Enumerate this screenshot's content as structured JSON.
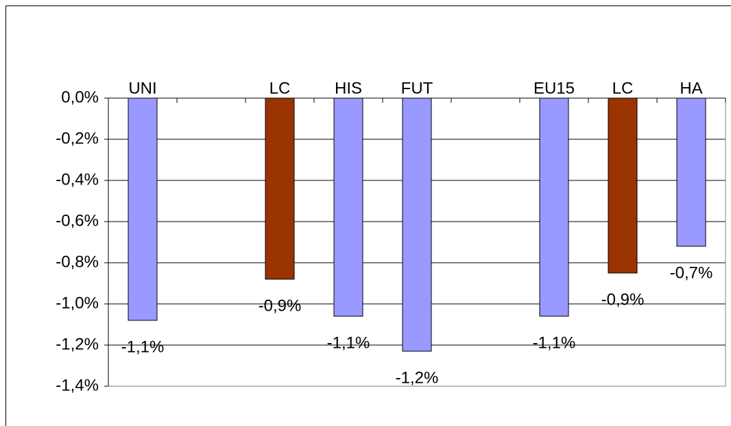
{
  "chart_data": {
    "type": "bar",
    "categories": [
      "UNI",
      null,
      "LC",
      "HIS",
      "FUT",
      null,
      "EU15",
      "LC",
      "HA"
    ],
    "values": [
      -1.08,
      null,
      -0.88,
      -1.06,
      -1.23,
      null,
      -1.06,
      -0.85,
      -0.72
    ],
    "value_labels": [
      "-1,1%",
      null,
      "-0,9%",
      "-1,1%",
      "-1,2%",
      null,
      "-1,1%",
      "-0,9%",
      "-0,7%"
    ],
    "colors": [
      "#9999ff",
      null,
      "#993300",
      "#9999ff",
      "#9999ff",
      null,
      "#9999ff",
      "#993300",
      "#9999ff"
    ],
    "ylim": [
      -1.4,
      0
    ],
    "yticks": [
      {
        "value": 0,
        "label": "0,0%"
      },
      {
        "value": -0.2,
        "label": "-0,2%"
      },
      {
        "value": -0.4,
        "label": "-0,4%"
      },
      {
        "value": -0.6,
        "label": "-0,6%"
      },
      {
        "value": -0.8,
        "label": "-0,8%"
      },
      {
        "value": -1.0,
        "label": "-1,0%"
      },
      {
        "value": -1.2,
        "label": "-1,2%"
      },
      {
        "value": -1.4,
        "label": "-1,4%"
      }
    ],
    "grid": true
  }
}
